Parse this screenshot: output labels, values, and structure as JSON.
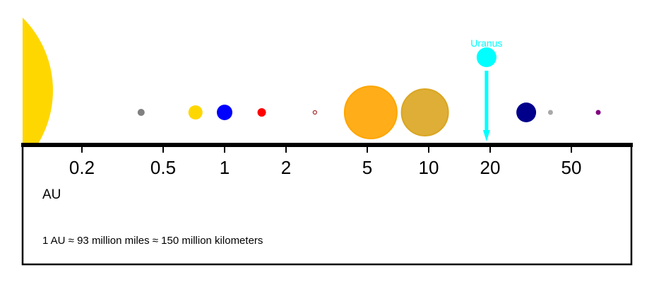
{
  "chart_data": {
    "type": "scatter",
    "title": "",
    "xscale": "log",
    "xlim": [
      0.1,
      90
    ],
    "x_ticks": [
      0.2,
      0.5,
      1,
      2,
      5,
      10,
      20,
      50
    ],
    "x_tick_labels": [
      "0.2",
      "0.5",
      "1",
      "2",
      "5",
      "10",
      "20",
      "50"
    ],
    "unit_label": "AU",
    "note": "1 AU ≈ 93 million miles ≈ 150 million kilometers",
    "sun": {
      "color": "#FFD700"
    },
    "bodies": [
      {
        "x": 0.39,
        "color": "#808080"
      },
      {
        "x": 0.72,
        "color": "#FFD700"
      },
      {
        "x": 1.0,
        "color": "#0000FF"
      },
      {
        "x": 1.52,
        "color": "#FF0000"
      },
      {
        "x": 2.77,
        "color": "#A52A2A"
      },
      {
        "x": 5.2,
        "color": "#FFA500"
      },
      {
        "x": 9.58,
        "color": "#DAA520"
      },
      {
        "x": 19.2,
        "color": "#00FFFF"
      },
      {
        "x": 30.05,
        "color": "#00008B"
      },
      {
        "x": 39.5,
        "color": "#A9A9A9"
      },
      {
        "x": 67.7,
        "color": "#800080"
      }
    ],
    "highlight": {
      "name": "Uranus",
      "x": 19.2,
      "color": "#00FFFF"
    }
  }
}
